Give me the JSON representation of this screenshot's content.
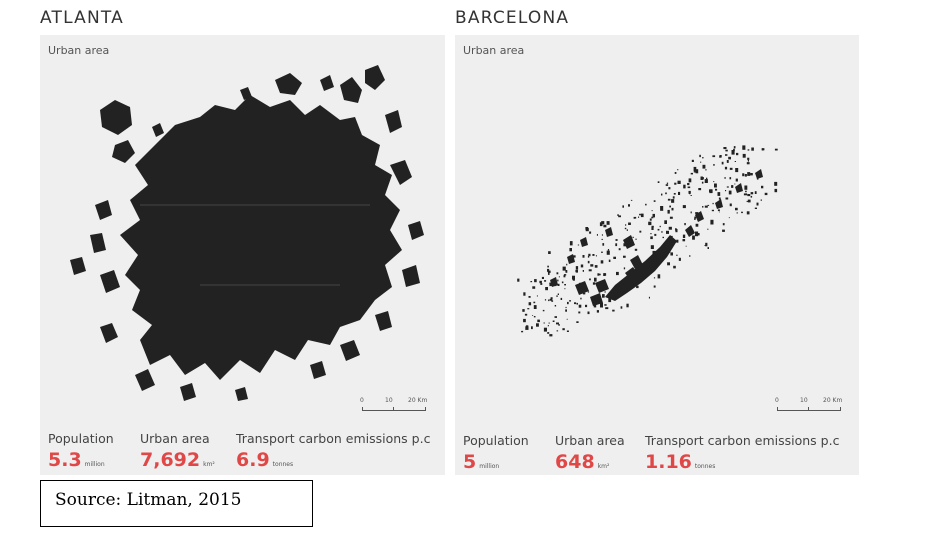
{
  "atlanta": {
    "title": "ATLANTA",
    "panel_label": "Urban area",
    "scale": {
      "ticks": [
        "0",
        "10",
        "20 Km"
      ]
    },
    "stats": [
      {
        "label": "Population",
        "value": "5.3",
        "unit": "million"
      },
      {
        "label": "Urban area",
        "value": "7,692",
        "unit": "km²"
      },
      {
        "label": "Transport carbon emissions p.c",
        "value": "6.9",
        "unit": "tonnes"
      }
    ]
  },
  "barcelona": {
    "title": "BARCELONA",
    "panel_label": "Urban area",
    "scale": {
      "ticks": [
        "0",
        "10",
        "20 Km"
      ]
    },
    "stats": [
      {
        "label": "Population",
        "value": "5",
        "unit": "million"
      },
      {
        "label": "Urban area",
        "value": "648",
        "unit": "km²"
      },
      {
        "label": "Transport carbon emissions p.c",
        "value": "1.16",
        "unit": "tonnes"
      }
    ]
  },
  "source": "Source: Litman, 2015",
  "colors": {
    "accent": "#e04848",
    "urban": "#222222",
    "panel": "#efefef"
  }
}
